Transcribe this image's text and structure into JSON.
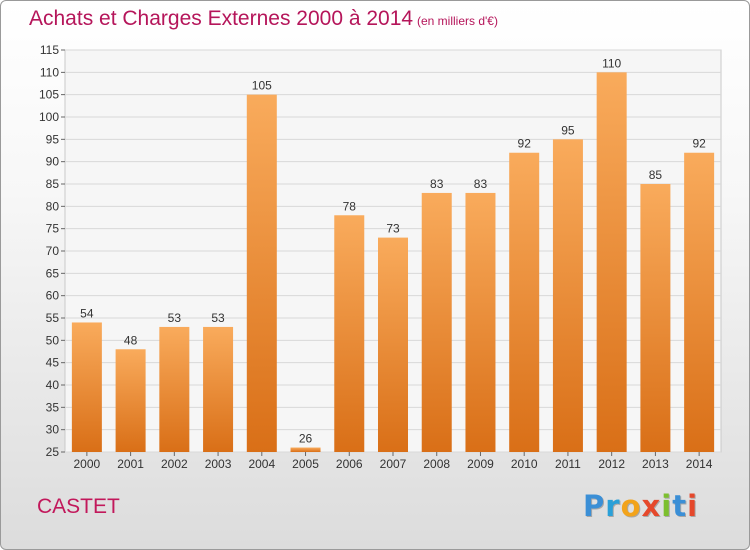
{
  "chart_data": {
    "type": "bar",
    "title": "Achats et Charges Externes 2000 à 2014",
    "subtitle": "(en milliers d'€)",
    "categories": [
      "2000",
      "2001",
      "2002",
      "2003",
      "2004",
      "2005",
      "2006",
      "2007",
      "2008",
      "2009",
      "2010",
      "2011",
      "2012",
      "2013",
      "2014"
    ],
    "values": [
      54,
      48,
      53,
      53,
      105,
      26,
      78,
      73,
      83,
      83,
      92,
      95,
      110,
      85,
      92
    ],
    "ylim": [
      25,
      115
    ],
    "yticks": [
      25,
      30,
      35,
      40,
      45,
      50,
      55,
      60,
      65,
      70,
      75,
      80,
      85,
      90,
      95,
      100,
      105,
      110,
      115
    ],
    "grid": true,
    "xlabel": "",
    "ylabel": "",
    "bar_color": "#e57c26",
    "bar_color_light": "#f7a75a"
  },
  "footer": {
    "town": "CASTET",
    "logo": "Proxiti",
    "logo_letters": [
      {
        "char": "P",
        "color": "#3b8fd6"
      },
      {
        "char": "r",
        "color": "#2aa0d8"
      },
      {
        "char": "o",
        "color": "#f2a31b"
      },
      {
        "char": "x",
        "color": "#e5482b"
      },
      {
        "char": "i",
        "color": "#7cbf2e"
      },
      {
        "char": "t",
        "color": "#3b8fd6"
      },
      {
        "char": "i",
        "color": "#e5482b"
      }
    ]
  },
  "colors": {
    "title": "#b5155a",
    "grid": "#d8d8d8",
    "axis": "#666666"
  }
}
